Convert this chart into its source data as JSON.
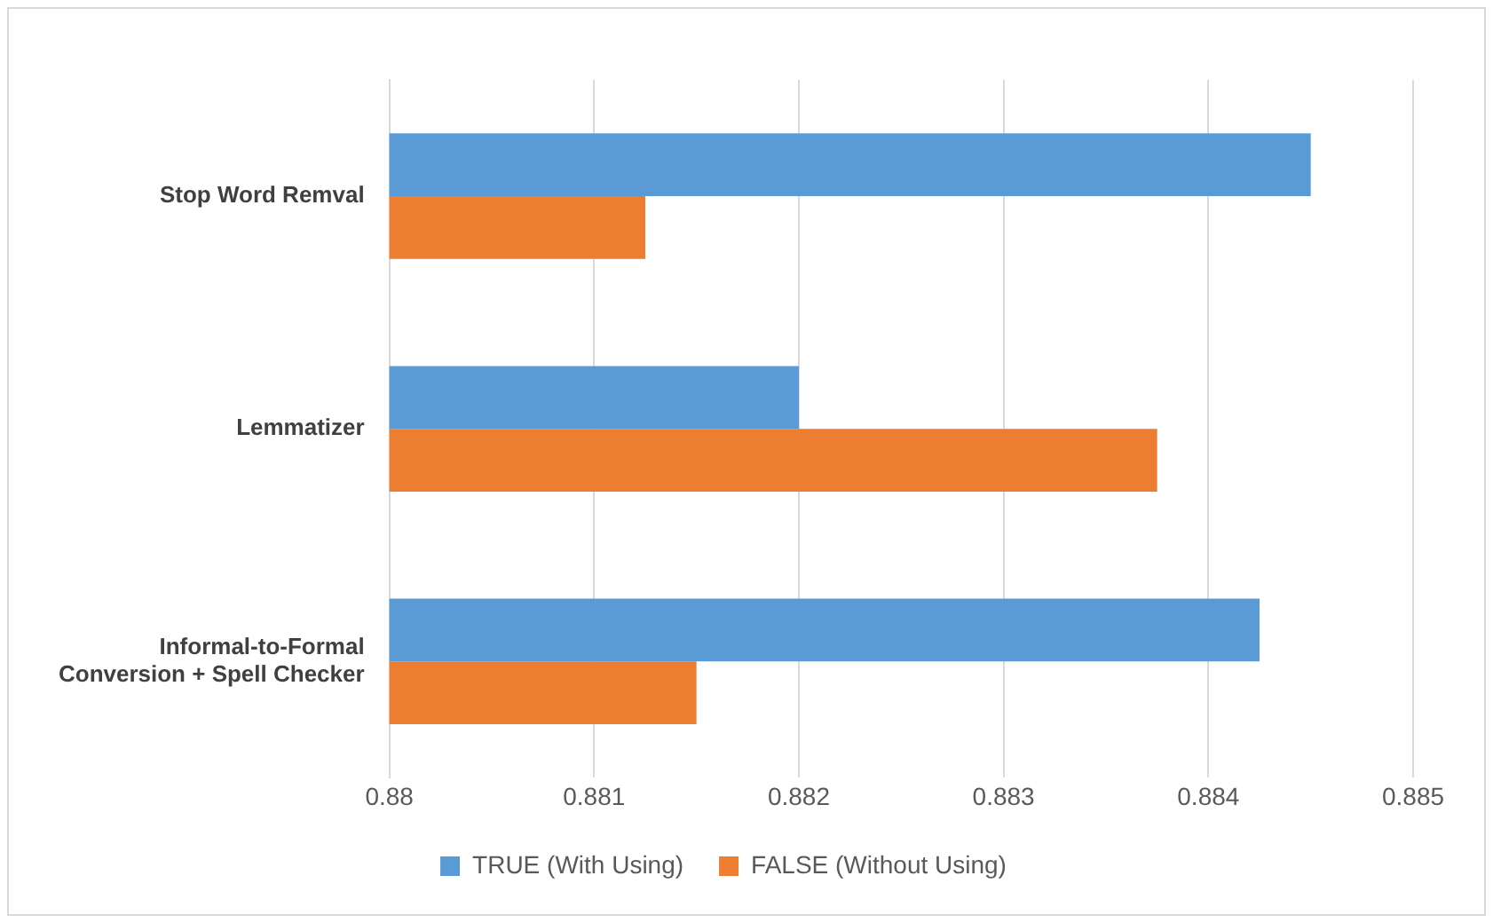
{
  "chart_data": {
    "type": "bar",
    "orientation": "horizontal",
    "categories": [
      "Stop Word Remval",
      "Lemmatizer",
      "Informal-to-Formal Conversion + Spell Checker"
    ],
    "series": [
      {
        "name": "TRUE (With Using)",
        "color": "#5b9bd5",
        "values": [
          0.8845,
          0.882,
          0.88425
        ]
      },
      {
        "name": "FALSE (Without Using)",
        "color": "#ed7d31",
        "values": [
          0.88125,
          0.88375,
          0.8815
        ]
      }
    ],
    "xlim": [
      0.88,
      0.885
    ],
    "xticks": [
      0.88,
      0.881,
      0.882,
      0.883,
      0.884,
      0.885
    ],
    "grid": "x",
    "legend": "bottom"
  }
}
